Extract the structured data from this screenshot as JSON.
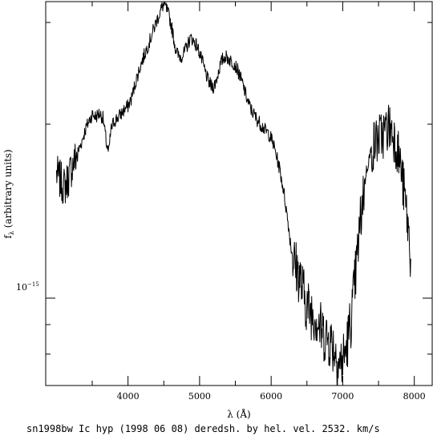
{
  "chart_data": {
    "type": "line",
    "xlabel": "λ (Å)",
    "ylabel": "f",
    "ylabel_sub": "λ",
    "ylabel_units": "(arbitrary units)",
    "caption": "sn1998bw Ic hyp (1998 06 08) deredsh. by hel. vel.  2532. km/s",
    "y_scale": "log",
    "xlim": [
      2850,
      8250
    ],
    "ylim": [
      7.06e-16,
      3.26e-15
    ],
    "x_ticks": [
      4000,
      5000,
      6000,
      7000,
      8000
    ],
    "x_tick_labels": [
      "4000",
      "5000",
      "6000",
      "7000",
      "8000"
    ],
    "y_major_ticks": [
      1e-15
    ],
    "y_tick_label": "10",
    "y_tick_exponent": "−15",
    "y_minor_ticks": [
      8e-16,
      9e-16,
      2e-15,
      3e-15
    ],
    "grid": false,
    "series": [
      {
        "x": [
          3000,
          3040,
          3080,
          3100,
          3130,
          3170,
          3210,
          3260,
          3300,
          3350,
          3400,
          3450,
          3500,
          3550,
          3600,
          3650,
          3700,
          3730,
          3760,
          3800,
          3850,
          3900,
          3950,
          4000,
          4050,
          4100,
          4150,
          4200,
          4250,
          4300,
          4350,
          4400,
          4450,
          4480,
          4510,
          4540,
          4580,
          4620,
          4660,
          4700,
          4740,
          4780,
          4820,
          4860,
          4890,
          4920,
          4960,
          5000,
          5040,
          5080,
          5120,
          5160,
          5200,
          5240,
          5280,
          5320,
          5360,
          5400,
          5440,
          5480,
          5520,
          5560,
          5600,
          5640,
          5680,
          5720,
          5760,
          5800,
          5840,
          5880,
          5920,
          5960,
          6000,
          6040,
          6080,
          6120,
          6160,
          6200,
          6240,
          6280,
          6320,
          6360,
          6400,
          6440,
          6480,
          6520,
          6560,
          6600,
          6640,
          6680,
          6720,
          6760,
          6800,
          6840,
          6880,
          6920,
          6960,
          7000,
          7040,
          7080,
          7120,
          7160,
          7200,
          7240,
          7280,
          7320,
          7360,
          7400,
          7440,
          7480,
          7520,
          7560,
          7600,
          7640,
          7680,
          7720,
          7760,
          7800,
          7840,
          7880,
          7920,
          7950
        ],
        "y": [
          1.64e-15,
          1.61e-15,
          1.58e-15,
          1.56e-15,
          1.57e-15,
          1.62e-15,
          1.68e-15,
          1.74e-15,
          1.79e-15,
          1.86e-15,
          1.95e-15,
          2.02e-15,
          2.08e-15,
          2.06e-15,
          2.09e-15,
          2.05e-15,
          1.85e-15,
          1.78e-15,
          1.95e-15,
          2.02e-15,
          2.05e-15,
          2.08e-15,
          2.12e-15,
          2.15e-15,
          2.22e-15,
          2.35e-15,
          2.47e-15,
          2.58e-15,
          2.68e-15,
          2.78e-15,
          2.9e-15,
          3.02e-15,
          3.13e-15,
          3.2e-15,
          3.22e-15,
          3.16e-15,
          3.06e-15,
          2.9e-15,
          2.72e-15,
          2.63e-15,
          2.62e-15,
          2.65e-15,
          2.72e-15,
          2.8e-15,
          2.82e-15,
          2.78e-15,
          2.74e-15,
          2.66e-15,
          2.56e-15,
          2.46e-15,
          2.38e-15,
          2.33e-15,
          2.32e-15,
          2.4e-15,
          2.51e-15,
          2.59e-15,
          2.62e-15,
          2.6e-15,
          2.57e-15,
          2.55e-15,
          2.5e-15,
          2.43e-15,
          2.35e-15,
          2.26e-15,
          2.18e-15,
          2.12e-15,
          2.08e-15,
          2.04e-15,
          2.01e-15,
          1.98e-15,
          1.95e-15,
          1.93e-15,
          1.89e-15,
          1.83e-15,
          1.75e-15,
          1.67e-15,
          1.57e-15,
          1.46e-15,
          1.34e-15,
          1.22e-15,
          1.15e-15,
          1.12e-15,
          1.09e-15,
          1.03e-15,
          9.9e-16,
          9.6e-16,
          9.5e-16,
          9.4e-16,
          9.2e-16,
          8.9e-16,
          8.7e-16,
          8.6e-16,
          8.5e-16,
          8.4e-16,
          8.2e-16,
          7.9e-16,
          7.7e-16,
          7.8e-16,
          8.1e-16,
          8.6e-16,
          9.3e-16,
          1.03e-15,
          1.17e-15,
          1.33e-15,
          1.5e-15,
          1.63e-15,
          1.73e-15,
          1.8e-15,
          1.85e-15,
          1.88e-15,
          1.9e-15,
          1.92e-15,
          1.95e-15,
          1.98e-15,
          1.96e-15,
          1.9e-15,
          1.82e-15,
          1.72e-15,
          1.58e-15,
          1.45e-15,
          1.3e-15,
          1.17e-15
        ]
      }
    ]
  }
}
